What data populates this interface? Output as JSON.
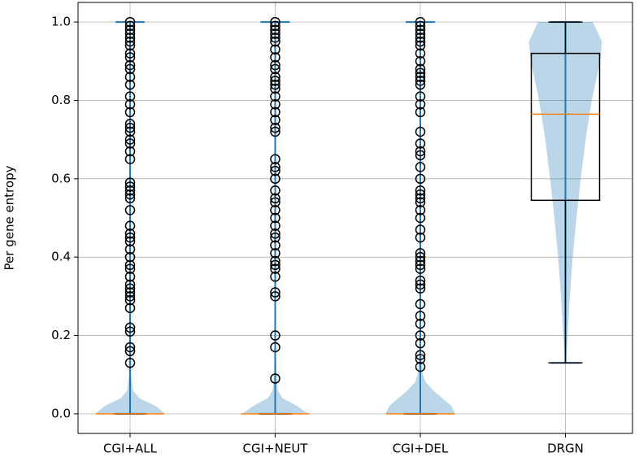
{
  "chart_data": {
    "type": "violin",
    "ylabel": "Per gene entropy",
    "categories": [
      "CGI+ALL",
      "CGI+NEUT",
      "CGI+DEL",
      "DRGN"
    ],
    "ylim": [
      -0.05,
      1.05
    ],
    "yticks": [
      {
        "value": 0,
        "label": "0.0"
      },
      {
        "value": 0.2,
        "label": "0.2"
      },
      {
        "value": 0.4,
        "label": "0.4"
      },
      {
        "value": 0.6,
        "label": "0.6"
      },
      {
        "value": 0.8,
        "label": "0.8"
      },
      {
        "value": 1,
        "label": "1.0"
      }
    ],
    "grid": true,
    "violin_color": "#1f77b4",
    "median_color": "#ff7f0e",
    "box_color": "#000000",
    "violins": [
      {
        "y": [
          0,
          0.02,
          0.04,
          0.06,
          0.1,
          0.2,
          0.4,
          0.6,
          0.8,
          1.0
        ],
        "density": [
          0.95,
          0.7,
          0.25,
          0.08,
          0.03,
          0.02,
          0.02,
          0.02,
          0.02,
          0.02
        ]
      },
      {
        "y": [
          0,
          0.02,
          0.04,
          0.06,
          0.1,
          0.2,
          0.4,
          0.6,
          0.8,
          1.0
        ],
        "density": [
          0.9,
          0.6,
          0.2,
          0.07,
          0.03,
          0.02,
          0.02,
          0.02,
          0.02,
          0.02
        ]
      },
      {
        "y": [
          0,
          0.02,
          0.04,
          0.06,
          0.08,
          0.1,
          0.15,
          0.2,
          0.4,
          0.6,
          0.8,
          1.0
        ],
        "density": [
          0.95,
          0.85,
          0.6,
          0.35,
          0.15,
          0.07,
          0.03,
          0.02,
          0.02,
          0.02,
          0.02,
          0.02
        ]
      },
      {
        "y": [
          0.13,
          0.2,
          0.3,
          0.4,
          0.5,
          0.6,
          0.7,
          0.8,
          0.9,
          0.95,
          1.0
        ],
        "density": [
          0.01,
          0.06,
          0.12,
          0.2,
          0.3,
          0.42,
          0.55,
          0.72,
          0.95,
          1.0,
          0.75
        ]
      }
    ],
    "boxes": [
      {
        "whislo": 0,
        "q1": 0,
        "med": 0,
        "q3": 0,
        "whishi": 0,
        "fliers": [
          1.0,
          0.99,
          0.98,
          0.97,
          0.96,
          0.95,
          0.94,
          0.92,
          0.91,
          0.89,
          0.88,
          0.86,
          0.84,
          0.81,
          0.79,
          0.77,
          0.74,
          0.73,
          0.72,
          0.7,
          0.69,
          0.67,
          0.65,
          0.59,
          0.58,
          0.57,
          0.56,
          0.55,
          0.52,
          0.48,
          0.46,
          0.45,
          0.44,
          0.42,
          0.4,
          0.38,
          0.37,
          0.35,
          0.33,
          0.32,
          0.31,
          0.3,
          0.29,
          0.27,
          0.22,
          0.21,
          0.17,
          0.16,
          0.13
        ]
      },
      {
        "whislo": 0,
        "q1": 0,
        "med": 0,
        "q3": 0,
        "whishi": 0,
        "fliers": [
          1.0,
          0.99,
          0.98,
          0.97,
          0.96,
          0.95,
          0.93,
          0.91,
          0.89,
          0.88,
          0.86,
          0.85,
          0.84,
          0.83,
          0.81,
          0.79,
          0.77,
          0.75,
          0.73,
          0.72,
          0.65,
          0.63,
          0.62,
          0.6,
          0.57,
          0.55,
          0.54,
          0.52,
          0.5,
          0.48,
          0.46,
          0.45,
          0.43,
          0.41,
          0.39,
          0.38,
          0.37,
          0.35,
          0.31,
          0.3,
          0.2,
          0.17,
          0.09
        ]
      },
      {
        "whislo": 0,
        "q1": 0,
        "med": 0,
        "q3": 0,
        "whishi": 0,
        "fliers": [
          1.0,
          0.99,
          0.98,
          0.97,
          0.96,
          0.95,
          0.94,
          0.92,
          0.9,
          0.88,
          0.87,
          0.86,
          0.85,
          0.84,
          0.81,
          0.79,
          0.77,
          0.72,
          0.69,
          0.67,
          0.66,
          0.63,
          0.6,
          0.57,
          0.56,
          0.55,
          0.54,
          0.52,
          0.5,
          0.47,
          0.45,
          0.41,
          0.4,
          0.39,
          0.38,
          0.37,
          0.34,
          0.33,
          0.32,
          0.28,
          0.25,
          0.23,
          0.2,
          0.18,
          0.15,
          0.14,
          0.12
        ]
      },
      {
        "whislo": 0.13,
        "q1": 0.545,
        "med": 0.765,
        "q3": 0.92,
        "whishi": 1.0,
        "fliers": []
      }
    ]
  }
}
